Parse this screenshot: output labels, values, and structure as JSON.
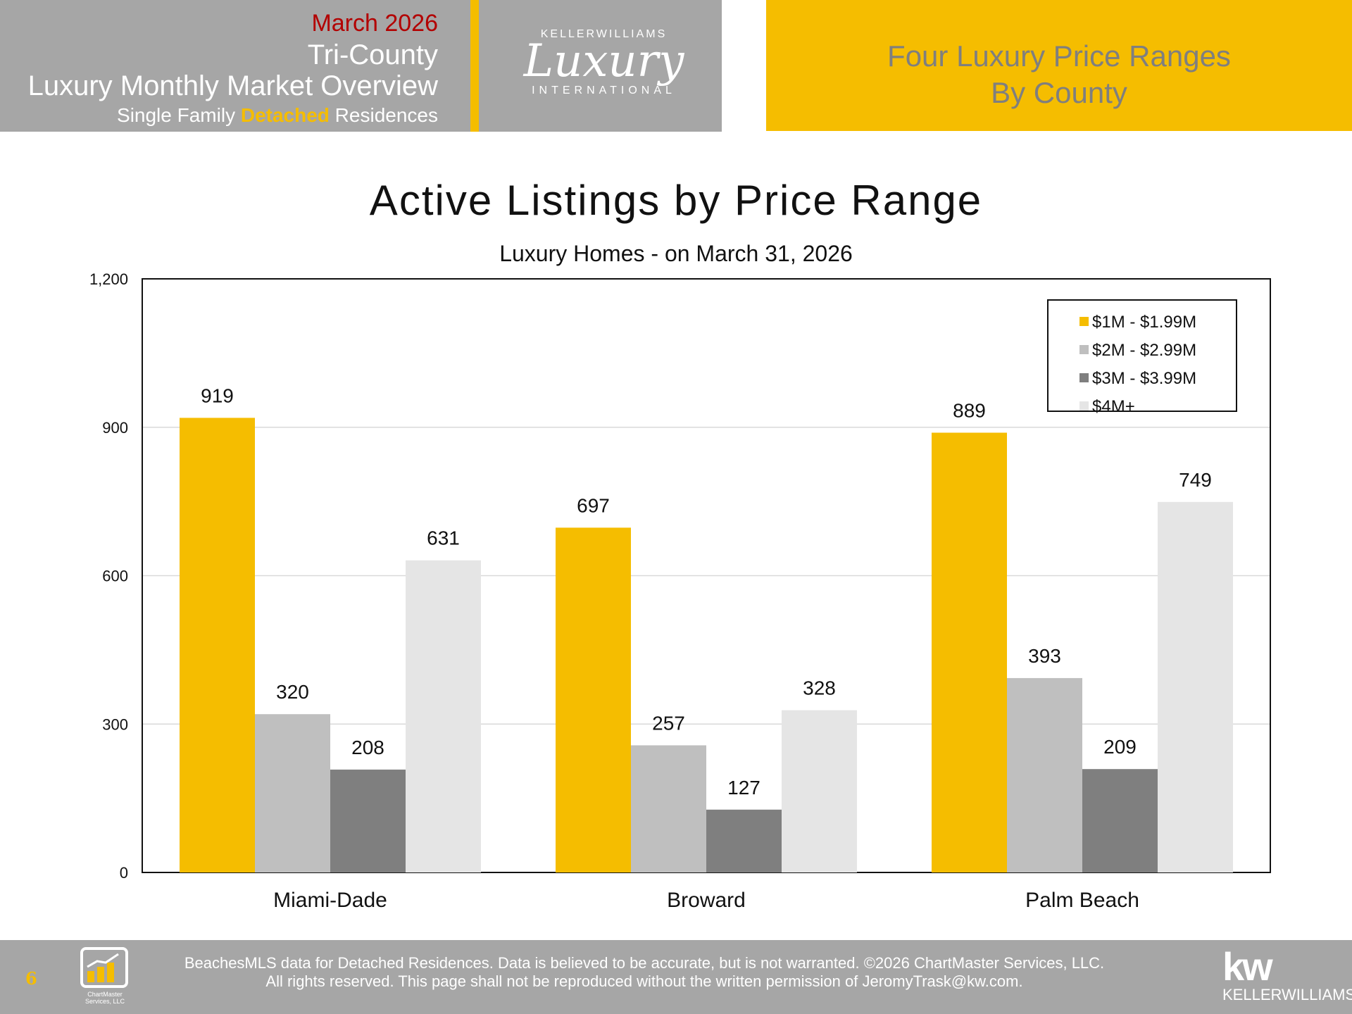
{
  "header": {
    "month": "March 2026",
    "region": "Tri-County",
    "report_title": "Luxury Monthly Market Overview",
    "subtitle_pre": "Single Family ",
    "subtitle_bold": "Detached",
    "subtitle_post": " Residences",
    "logo_top": "KELLERWILLIAMS",
    "logo_script": "Luxury",
    "logo_bottom": "INTERNATIONAL",
    "section_title_line1": "Four Luxury Price Ranges",
    "section_title_line2": "By County"
  },
  "chart_data": {
    "type": "bar",
    "title": "Active Listings by Price Range",
    "subtitle": "Luxury Homes - on March 31, 2026",
    "categories": [
      "Miami-Dade",
      "Broward",
      "Palm Beach"
    ],
    "series": [
      {
        "name": "$1M - $1.99M",
        "values": [
          919,
          697,
          889
        ],
        "color": "#f5bd00"
      },
      {
        "name": "$2M - $2.99M",
        "values": [
          320,
          257,
          393
        ],
        "color": "#bfbfbf"
      },
      {
        "name": "$3M - $3.99M",
        "values": [
          208,
          127,
          209
        ],
        "color": "#7f7f7f"
      },
      {
        "name": "$4M+",
        "values": [
          631,
          328,
          749
        ],
        "color": "#e5e5e5"
      }
    ],
    "ylim": [
      0,
      1200
    ],
    "yticks": [
      0,
      300,
      600,
      900,
      1200
    ],
    "ytick_labels": [
      "0",
      "300",
      "600",
      "900",
      "1,200"
    ],
    "grid": true,
    "legend_position": "top-right"
  },
  "footer": {
    "page_number": "6",
    "logo_text": "ChartMaster Services, LLC",
    "disclaimer_line1": "BeachesMLS data for Detached Residences.  Data is believed to be accurate, but is not warranted.   ©2026  ChartMaster Services, LLC.",
    "disclaimer_line2": "All rights reserved. This page shall not be reproduced without the written permission of JeromyTrask@kw.com.",
    "kw_mark": "kw",
    "kw_name": "KELLERWILLIAMS."
  }
}
